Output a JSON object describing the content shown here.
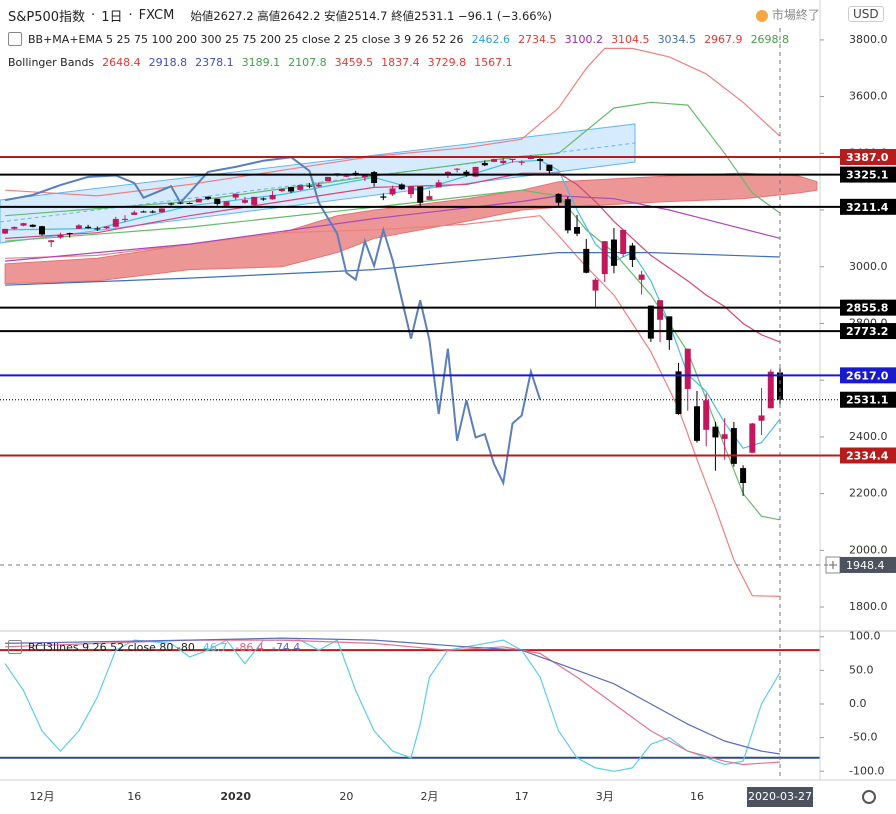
{
  "header": {
    "symbol": "S&P500指数",
    "interval": "1日",
    "source": "FXCM",
    "ohlc_labels": [
      "始値",
      "高値",
      "安値",
      "終値"
    ],
    "change": "−96.1 (−3.66%)",
    "status": "市場終了",
    "currency": "USD"
  },
  "legend": [
    {
      "text": "BB+MA+EMA 5 25 75 100 200 300 25 75 200 25 close 2 25 close 3 9 26 52 26",
      "values": [
        2462.6,
        2734.5,
        3100.2,
        3104.5,
        3034.5,
        2967.9,
        2698.8
      ],
      "colors": [
        "#2f9fd8",
        "#e53935",
        "#9c27b0",
        "#e53935",
        "#3f6fb5",
        "#e53935",
        "#43a047"
      ]
    },
    {
      "text": "Bollinger Bands",
      "values": [
        2648.4,
        2918.8,
        2378.1,
        3189.1,
        2107.8,
        3459.5,
        1837.4,
        3729.8,
        1567.1
      ],
      "colors": [
        "#e53935",
        "#3f51b5",
        "#3f51b5",
        "#43a047",
        "#43a047",
        "#e53935",
        "#e53935",
        "#e53935",
        "#e53935"
      ]
    },
    {
      "text": "RCI3lines 9 26 52 close 80 -80",
      "values": [
        46.7,
        -86.4,
        -74.4
      ],
      "colors": [
        "#4dc8e0",
        "#e06080",
        "#5c6bc0"
      ]
    }
  ],
  "chart_data": [
    {
      "type": "candlestick",
      "up_color": "#c2185b",
      "down_color": "#000000",
      "categories": [
        null,
        null,
        null,
        null,
        "12月",
        null,
        null,
        null,
        null,
        null,
        null,
        null,
        null,
        null,
        "16",
        null,
        null,
        null,
        null,
        null,
        null,
        null,
        null,
        null,
        null,
        "2020",
        null,
        null,
        null,
        null,
        null,
        null,
        null,
        null,
        null,
        null,
        null,
        "20",
        null,
        null,
        null,
        null,
        null,
        null,
        null,
        null,
        "2月",
        null,
        null,
        null,
        null,
        null,
        null,
        null,
        null,
        null,
        "17",
        null,
        null,
        null,
        null,
        null,
        null,
        null,
        null,
        "3月",
        null,
        null,
        null,
        null,
        null,
        null,
        null,
        null,
        null,
        "16",
        null,
        null,
        null,
        null,
        null,
        null,
        null,
        null,
        "2020-03-27"
      ],
      "open": [
        3117,
        3134,
        3145,
        3148,
        3143,
        3087,
        3103,
        3119,
        3134,
        3141,
        3135,
        3136,
        3141,
        3167,
        3183,
        3195,
        3195,
        3192,
        3223,
        3226,
        3225,
        3227,
        3247,
        3240,
        3215,
        3244,
        3226,
        3218,
        3241,
        3238,
        3267,
        3281,
        3271,
        3286,
        3283,
        3302,
        3324,
        3321,
        3331,
        3316,
        3334,
        3248,
        3255,
        3290,
        3256,
        3283,
        3236,
        3280,
        3324,
        3345,
        3335,
        3318,
        3366,
        3370,
        3366,
        3378,
        3369,
        3380,
        3380,
        3360,
        3257,
        3238,
        3140,
        3063,
        2916,
        2974,
        3096,
        3045,
        3075,
        2954,
        2863,
        2813,
        2825,
        2631,
        2569,
        2508,
        2425,
        2436,
        2393,
        2431,
        2290,
        2344,
        2457,
        2501,
        2627.2
      ],
      "high": [
        3134,
        3142,
        3155,
        3150,
        3144,
        3095,
        3120,
        3120,
        3150,
        3148,
        3142,
        3143,
        3176,
        3182,
        3198,
        3198,
        3199,
        3206,
        3226,
        3228,
        3227,
        3240,
        3248,
        3240,
        3231,
        3258,
        3246,
        3247,
        3244,
        3267,
        3276,
        3282,
        3288,
        3295,
        3298,
        3317,
        3330,
        3329,
        3338,
        3326,
        3338,
        3259,
        3286,
        3294,
        3285,
        3283,
        3268,
        3307,
        3337,
        3348,
        3341,
        3353,
        3375,
        3381,
        3385,
        3381,
        3375,
        3394,
        3389,
        3360,
        3259,
        3247,
        3183,
        3098,
        2960,
        3091,
        3137,
        3130,
        3084,
        2986,
        2863,
        2882,
        2825,
        2661,
        2711,
        2562,
        2553,
        2453,
        2466,
        2453,
        2300,
        2449,
        2572,
        2638,
        2642.2
      ],
      "low": [
        3115,
        3131,
        3143,
        3139,
        3110,
        3070,
        3099,
        3103,
        3134,
        3135,
        3126,
        3133,
        3138,
        3157,
        3183,
        3191,
        3189,
        3191,
        3216,
        3221,
        3222,
        3227,
        3235,
        3216,
        3213,
        3235,
        3222,
        3215,
        3233,
        3236,
        3263,
        3260,
        3268,
        3277,
        3280,
        3302,
        3318,
        3316,
        3320,
        3302,
        3283,
        3235,
        3250,
        3271,
        3242,
        3214,
        3236,
        3280,
        3313,
        3333,
        3318,
        3317,
        3355,
        3369,
        3360,
        3367,
        3358,
        3379,
        3341,
        3328,
        3215,
        3118,
        3108,
        2977,
        2855,
        2946,
        2977,
        3035,
        2999,
        2902,
        2735,
        2734,
        2707,
        2478,
        2492,
        2380,
        2367,
        2281,
        2319,
        2295,
        2192,
        2344,
        2407,
        2500,
        2514.7
      ],
      "close": [
        3133.6,
        3140.5,
        3153.6,
        3141,
        3113.9,
        3093.2,
        3112.8,
        3117.4,
        3145.9,
        3136,
        3132.5,
        3141.6,
        3168.6,
        3168.8,
        3191.5,
        3192.5,
        3191.1,
        3205.4,
        3221.2,
        3224,
        3223.4,
        3239.9,
        3240,
        3221.3,
        3230.8,
        3257.9,
        3234.9,
        3246.3,
        3237.2,
        3253.1,
        3274.7,
        3265.4,
        3288.1,
        3283.2,
        3289.3,
        3316.8,
        3329.6,
        3321,
        3321.8,
        3325.5,
        3295.5,
        3243.6,
        3276.2,
        3273.4,
        3283.7,
        3225.5,
        3248.9,
        3297.6,
        3334.7,
        3345.8,
        3327.7,
        3352.1,
        3357.8,
        3379.5,
        3373.9,
        3380.2,
        3370.3,
        3386.2,
        3373.2,
        3337.8,
        3225.9,
        3128.2,
        3116.4,
        2978.8,
        2954.2,
        3090.2,
        3003.4,
        3130.1,
        3023.9,
        2972.4,
        2746.6,
        2882.2,
        2741.4,
        2480.6,
        2711,
        2386.1,
        2529.2,
        2398.1,
        2409.4,
        2304.9,
        2237.4,
        2447.3,
        2475.6,
        2630.1,
        2531.1
      ],
      "ylim": [
        1719,
        3842
      ],
      "yticks": [
        {
          "value": 3800,
          "label": "3800.0"
        },
        {
          "value": 3600,
          "label": "3600.0"
        },
        {
          "value": 3400,
          "label": "3400.0"
        },
        {
          "value": 3200,
          "label": "3200.0"
        },
        {
          "value": 3000,
          "label": "3000.0"
        },
        {
          "value": 2800,
          "label": "2800.0"
        },
        {
          "value": 2600,
          "label": "2600.0"
        },
        {
          "value": 2400,
          "label": "2400.0"
        },
        {
          "value": 2200,
          "label": "2200.0"
        },
        {
          "value": 2000,
          "label": "2000.0"
        },
        {
          "value": 1800,
          "label": "1800.0"
        }
      ],
      "cloud": {
        "color": "#e57373",
        "x": [
          0,
          10,
          20,
          30,
          36,
          40,
          50,
          56,
          60,
          66,
          72,
          80,
          86,
          88
        ],
        "span_a": [
          3010,
          3030,
          3080,
          3120,
          3180,
          3200,
          3240,
          3270,
          3300,
          3310,
          3320,
          3330,
          3320,
          3300
        ],
        "span_b": [
          2940,
          2950,
          2990,
          3000,
          3050,
          3100,
          3160,
          3200,
          3210,
          3220,
          3230,
          3240,
          3260,
          3270
        ]
      },
      "series": [
        {
          "color": "#f08080",
          "x": [
            0,
            10,
            20,
            30,
            40,
            50,
            56,
            60,
            63,
            65,
            68,
            72,
            76,
            80,
            84
          ],
          "values": [
            3270,
            3250,
            3290,
            3340,
            3390,
            3420,
            3450,
            3560,
            3700,
            3770,
            3770,
            3740,
            3680,
            3580,
            3460
          ]
        },
        {
          "color": "#f08080",
          "x": [
            0,
            10,
            20,
            30,
            40,
            50,
            58,
            60,
            63,
            66,
            70,
            73,
            75,
            77,
            79,
            81,
            84
          ],
          "values": [
            3030,
            3040,
            3080,
            3120,
            3130,
            3150,
            3180,
            3110,
            3000,
            2900,
            2700,
            2500,
            2320,
            2150,
            1966,
            1840,
            1837.4
          ]
        },
        {
          "color": "#66bb6a",
          "x": [
            0,
            20,
            40,
            56,
            60,
            63,
            66,
            70,
            74,
            78,
            81,
            84
          ],
          "values": [
            3180,
            3230,
            3320,
            3390,
            3400,
            3480,
            3560,
            3580,
            3570,
            3400,
            3260,
            3189.1
          ]
        },
        {
          "color": "#66bb6a",
          "x": [
            0,
            20,
            40,
            56,
            60,
            63,
            66,
            70,
            74,
            77,
            80,
            82,
            84
          ],
          "values": [
            3090,
            3140,
            3210,
            3270,
            3250,
            3130,
            3050,
            2900,
            2700,
            2450,
            2200,
            2120,
            2107.8
          ]
        },
        {
          "color": "#3f6fb5",
          "x": [
            0,
            20,
            40,
            60,
            70,
            84
          ],
          "values": [
            2935,
            2960,
            2990,
            3050,
            3050,
            3034.5
          ]
        },
        {
          "color": "#ab47bc",
          "x": [
            0,
            20,
            40,
            56,
            60,
            66,
            72,
            78,
            84
          ],
          "values": [
            3020,
            3080,
            3170,
            3230,
            3250,
            3240,
            3200,
            3150,
            3100.2
          ]
        },
        {
          "color": "#d6467a",
          "x": [
            0,
            10,
            20,
            30,
            40,
            50,
            56,
            60,
            62,
            64,
            66,
            70,
            74,
            76,
            78,
            80,
            82,
            84
          ],
          "values": [
            3100,
            3120,
            3180,
            3230,
            3280,
            3290,
            3330,
            3330,
            3290,
            3230,
            3160,
            3040,
            2950,
            2900,
            2860,
            2800,
            2760,
            2734.5
          ]
        },
        {
          "color": "#45c0e0",
          "x": [
            0,
            10,
            20,
            30,
            40,
            45,
            50,
            55,
            58,
            60,
            62,
            64,
            66,
            68,
            70,
            72,
            74,
            76,
            78,
            80,
            82,
            84
          ],
          "values": [
            3130,
            3135,
            3215,
            3255,
            3315,
            3270,
            3320,
            3370,
            3375,
            3340,
            3200,
            3080,
            3020,
            3050,
            2950,
            2800,
            2620,
            2560,
            2450,
            2360,
            2380,
            2462.6
          ]
        },
        {
          "color": "#5b7fb9",
          "x": [
            0,
            3,
            6,
            9,
            12,
            14,
            15,
            18,
            19,
            22,
            25,
            28,
            31,
            33,
            34,
            36,
            37,
            38,
            39,
            40,
            41,
            42,
            44,
            45,
            46,
            47,
            48,
            49,
            50,
            51,
            52,
            53,
            54,
            55,
            56,
            57,
            58
          ],
          "values": [
            3234.9,
            3253.1,
            3288.1,
            3316.8,
            3321.8,
            3295.5,
            3243.6,
            3283.7,
            3225.5,
            3334.7,
            3352.1,
            3373.9,
            3386.2,
            3337.8,
            3225.9,
            3116.4,
            2978.8,
            2954.2,
            3090.2,
            3003.4,
            3130.1,
            3023.9,
            2746.6,
            2882.2,
            2741.4,
            2480.6,
            2711,
            2386.1,
            2529.2,
            2398.1,
            2409.4,
            2304.9,
            2237.4,
            2447.3,
            2475.6,
            2630.1,
            2531.1
          ]
        }
      ],
      "hlines": [
        {
          "value": 3387.0,
          "label": "3387.0",
          "color": "#b71c1c"
        },
        {
          "value": 3325.1,
          "color": "#000000"
        },
        {
          "value": 3211.4,
          "color": "#000000"
        },
        {
          "value": 2855.8,
          "color": "#000000"
        },
        {
          "value": 2773.2,
          "color": "#000000"
        },
        {
          "value": 2617.0,
          "label": "2617.0",
          "color": "#1a1acd"
        },
        {
          "value": 2531.1,
          "color": "#000000",
          "dotted": true
        },
        {
          "value": 2334.4,
          "color": "#b71c1c"
        }
      ],
      "crosshair": {
        "price": 1948.4
      }
    },
    {
      "type": "line",
      "ylim": [
        -113,
        107
      ],
      "yticks": [
        {
          "value": 100,
          "label": "100.0"
        },
        {
          "value": 50,
          "label": "50.0"
        },
        {
          "value": 0,
          "label": "0.0"
        },
        {
          "value": -50,
          "label": "-50.0"
        },
        {
          "value": -100,
          "label": "-100.0"
        }
      ],
      "hlines": [
        {
          "value": 80,
          "color": "#b71c1c"
        },
        {
          "value": -80,
          "color": "#2a4b8d"
        }
      ],
      "series": [
        {
          "color": "#5fcde4",
          "x": [
            0,
            2,
            4,
            6,
            8,
            10,
            12,
            14,
            18,
            20,
            22,
            24,
            26,
            28,
            32,
            34,
            36,
            38,
            40,
            42,
            44,
            45,
            46,
            48,
            50,
            54,
            56,
            58,
            60,
            62,
            64,
            66,
            68,
            70,
            72,
            74,
            76,
            78,
            80,
            82,
            84
          ],
          "values": [
            60,
            20,
            -40,
            -70,
            -40,
            10,
            80,
            95,
            90,
            70,
            80,
            95,
            60,
            95,
            95,
            80,
            95,
            20,
            -40,
            -70,
            -80,
            -30,
            40,
            80,
            85,
            95,
            80,
            40,
            -40,
            -80,
            -95,
            -100,
            -95,
            -60,
            -50,
            -70,
            -80,
            -90,
            -85,
            0,
            46.7
          ]
        },
        {
          "color": "#e57390",
          "x": [
            0,
            10,
            20,
            30,
            40,
            48,
            54,
            58,
            62,
            66,
            70,
            74,
            78,
            80,
            82,
            84
          ],
          "values": [
            85,
            90,
            95,
            95,
            90,
            80,
            85,
            75,
            40,
            0,
            -40,
            -70,
            -85,
            -90,
            -88,
            -86.4
          ]
        },
        {
          "color": "#5c6bc0",
          "x": [
            0,
            20,
            30,
            40,
            50,
            56,
            60,
            66,
            70,
            74,
            78,
            82,
            84
          ],
          "values": [
            90,
            95,
            98,
            95,
            85,
            80,
            60,
            30,
            0,
            -30,
            -55,
            -70,
            -74.4
          ]
        }
      ]
    }
  ]
}
